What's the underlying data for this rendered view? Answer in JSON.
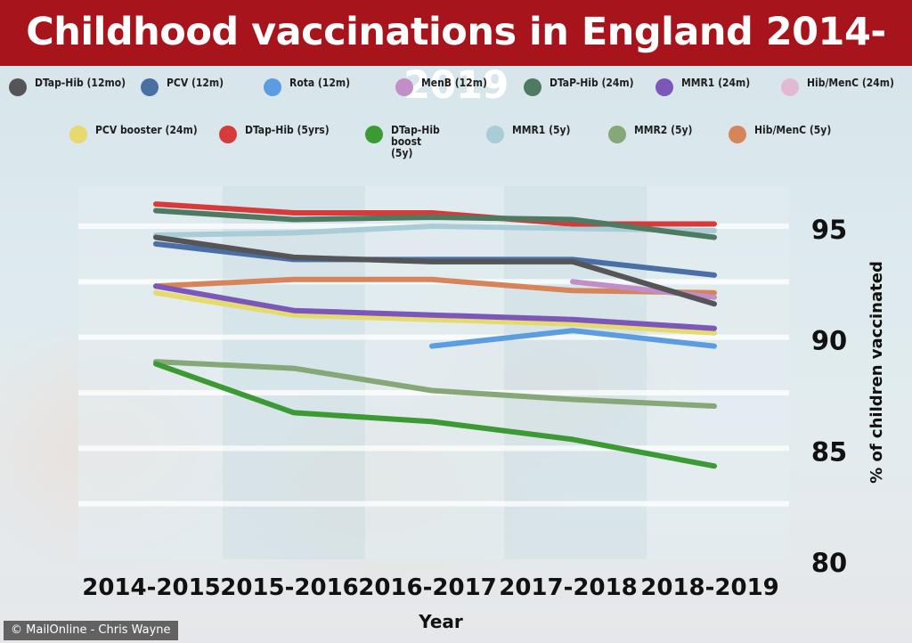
{
  "header": {
    "title": "Childhood vaccinations in England 2014-2019"
  },
  "footer": {
    "credit": "© MailOnline - Chris Wayne"
  },
  "chart_data": {
    "type": "line",
    "title": "Childhood vaccinations in England 2014-2019",
    "xlabel": "Year",
    "ylabel": "% of children vaccinated",
    "categories": [
      "2014-2015",
      "2015-2016",
      "2016-2017",
      "2017-2018",
      "2018-2019"
    ],
    "yticks": [
      80,
      85,
      90,
      95
    ],
    "ylim": [
      80,
      96.8
    ],
    "y_axis_side": "right",
    "grid": true,
    "legend_position": "top",
    "series": [
      {
        "name": "DTap-Hib (12mo)",
        "color": "#555558",
        "values": [
          94.5,
          93.6,
          93.4,
          93.4,
          91.5
        ]
      },
      {
        "name": "PCV (12m)",
        "color": "#4a6fa5",
        "values": [
          94.2,
          93.5,
          93.5,
          93.5,
          92.8
        ]
      },
      {
        "name": "Rota (12m)",
        "color": "#5b9de0",
        "values": [
          null,
          null,
          89.6,
          90.3,
          89.6
        ]
      },
      {
        "name": "MenB (12m)",
        "color": "#c18ec8",
        "values": [
          null,
          null,
          null,
          92.5,
          91.8
        ]
      },
      {
        "name": "DTaP-Hib (24m)",
        "color": "#4f7a62",
        "values": [
          95.7,
          95.3,
          95.4,
          95.3,
          94.5
        ]
      },
      {
        "name": "MMR1 (24m)",
        "color": "#7b57b9",
        "values": [
          92.3,
          91.2,
          91.0,
          90.8,
          90.4
        ]
      },
      {
        "name": "Hib/MenC (24m)",
        "color": "#e3b8d3",
        "values": [
          null,
          null,
          null,
          null,
          null
        ]
      },
      {
        "name": "PCV booster (24m)",
        "color": "#e6da6e",
        "values": [
          92.0,
          91.0,
          90.8,
          90.6,
          90.2
        ]
      },
      {
        "name": "DTap-Hib (5yrs)",
        "color": "#d63a3a",
        "values": [
          96.0,
          95.6,
          95.6,
          95.1,
          95.1
        ]
      },
      {
        "name": "DTap-Hib boost (5y)",
        "color": "#3c9a35",
        "values": [
          88.8,
          86.6,
          86.2,
          85.4,
          84.2
        ]
      },
      {
        "name": "MMR1 (5y)",
        "color": "#a9cdd6",
        "values": [
          94.6,
          94.7,
          95.0,
          94.9,
          94.8
        ]
      },
      {
        "name": "MMR2 (5y)",
        "color": "#86a777",
        "values": [
          88.9,
          88.6,
          87.6,
          87.2,
          86.9
        ]
      },
      {
        "name": "Hib/MenC (5y)",
        "color": "#d7845a",
        "values": [
          92.3,
          92.6,
          92.6,
          92.1,
          92.0
        ]
      }
    ]
  }
}
